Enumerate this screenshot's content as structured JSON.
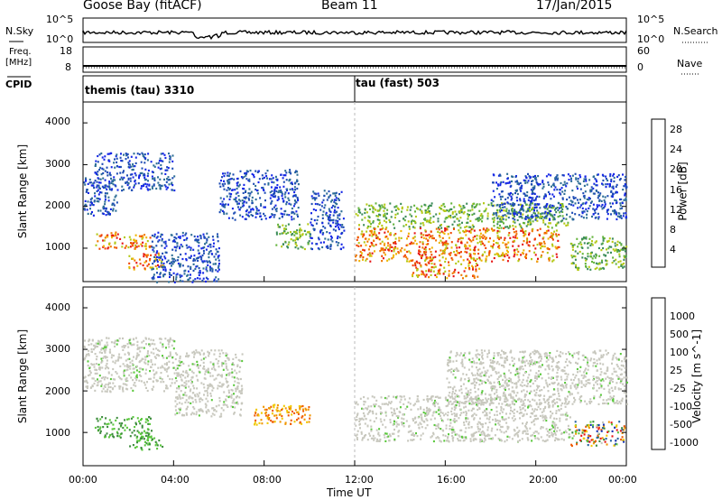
{
  "header": {
    "station": "Goose Bay (fitACF)",
    "beam": "Beam 11",
    "date": "17/Jan/2015"
  },
  "noise_panel": {
    "left_label": "N.Sky",
    "left_ticks": [
      "10^5",
      "10^0"
    ],
    "right_ticks": [
      "10^5",
      "10^0"
    ],
    "right_label": "N.Search"
  },
  "freq_panel": {
    "left_label_1": "Freq.",
    "left_label_2": "[MHz]",
    "left_ticks": [
      "18",
      "8"
    ],
    "right_ticks": [
      "60",
      "0"
    ],
    "right_label": "Nave"
  },
  "cpid_panel": {
    "label": "CPID",
    "modes": [
      {
        "name": "themis (tau) 3310",
        "start": "00:00"
      },
      {
        "name": "tau (fast) 503",
        "start": "12:00"
      }
    ]
  },
  "chart_data": [
    {
      "type": "heatmap",
      "name": "power",
      "ylabel": "Slant Range [km]",
      "y_ticks": [
        "4000",
        "3000",
        "2000",
        "1000"
      ],
      "ylim": [
        200,
        4500
      ],
      "colorbar_label": "Power [dB]",
      "colorbar_ticks": [
        "28",
        "24",
        "20",
        "16",
        "12",
        "8",
        "4"
      ],
      "colors": [
        "#1426e6",
        "#1e4cb4",
        "#2d6e96",
        "#3c8c5a",
        "#64b43c",
        "#b4c814",
        "#f0b400",
        "#f07800",
        "#f04600",
        "#e61414"
      ],
      "regions": [
        {
          "start": "00:00",
          "end": "01:30",
          "range_km": [
            1800,
            2700
          ],
          "level": "low"
        },
        {
          "start": "00:30",
          "end": "04:00",
          "range_km": [
            2400,
            3300
          ],
          "level": "low"
        },
        {
          "start": "00:30",
          "end": "03:00",
          "range_km": [
            1000,
            1400
          ],
          "level": "high"
        },
        {
          "start": "02:00",
          "end": "03:30",
          "range_km": [
            500,
            900
          ],
          "level": "high"
        },
        {
          "start": "03:00",
          "end": "06:00",
          "range_km": [
            200,
            1400
          ],
          "level": "low"
        },
        {
          "start": "06:00",
          "end": "09:30",
          "range_km": [
            1700,
            2900
          ],
          "level": "low"
        },
        {
          "start": "08:30",
          "end": "10:00",
          "range_km": [
            1000,
            1600
          ],
          "level": "medium"
        },
        {
          "start": "10:00",
          "end": "11:30",
          "range_km": [
            1000,
            2400
          ],
          "level": "low"
        },
        {
          "start": "12:00",
          "end": "21:30",
          "range_km": [
            1500,
            2100
          ],
          "level": "medium"
        },
        {
          "start": "12:00",
          "end": "21:00",
          "range_km": [
            700,
            1500
          ],
          "level": "high"
        },
        {
          "start": "14:30",
          "end": "17:30",
          "range_km": [
            300,
            700
          ],
          "level": "high"
        },
        {
          "start": "18:00",
          "end": "24:00",
          "range_km": [
            1700,
            2800
          ],
          "level": "low"
        },
        {
          "start": "21:30",
          "end": "24:00",
          "range_km": [
            500,
            1300
          ],
          "level": "medium"
        }
      ]
    },
    {
      "type": "heatmap",
      "name": "velocity",
      "ylabel": "Slant Range [km]",
      "y_ticks": [
        "4000",
        "3000",
        "2000",
        "1000"
      ],
      "ylim": [
        200,
        4500
      ],
      "colorbar_label": "Velocity [m s^-1]",
      "colorbar_ticks": [
        "1000",
        "500",
        "100",
        "25",
        "-25",
        "-100",
        "-500",
        "-1000"
      ],
      "colors": [
        "#1432b4",
        "#2864a0",
        "#3c8c3c",
        "#5ac83c",
        "#c8c8be",
        "#f0c800",
        "#f09600",
        "#f05a00",
        "#e61414"
      ],
      "regions": [
        {
          "start": "00:00",
          "end": "04:00",
          "range_km": [
            2000,
            3300
          ],
          "level": "ground"
        },
        {
          "start": "00:30",
          "end": "03:00",
          "range_km": [
            900,
            1400
          ],
          "level": "positive"
        },
        {
          "start": "02:00",
          "end": "03:30",
          "range_km": [
            600,
            900
          ],
          "level": "positive"
        },
        {
          "start": "04:00",
          "end": "07:00",
          "range_km": [
            1400,
            3000
          ],
          "level": "ground"
        },
        {
          "start": "07:30",
          "end": "10:00",
          "range_km": [
            1200,
            1700
          ],
          "level": "negative"
        },
        {
          "start": "12:00",
          "end": "21:30",
          "range_km": [
            800,
            1900
          ],
          "level": "ground"
        },
        {
          "start": "16:00",
          "end": "24:00",
          "range_km": [
            1700,
            3000
          ],
          "level": "ground"
        },
        {
          "start": "21:30",
          "end": "24:00",
          "range_km": [
            700,
            1300
          ],
          "level": "mixed"
        }
      ]
    }
  ],
  "x_axis": {
    "ticks": [
      "00:00",
      "04:00",
      "08:00",
      "12:00",
      "16:00",
      "20:00",
      "00:00"
    ],
    "label": "Time UT"
  }
}
